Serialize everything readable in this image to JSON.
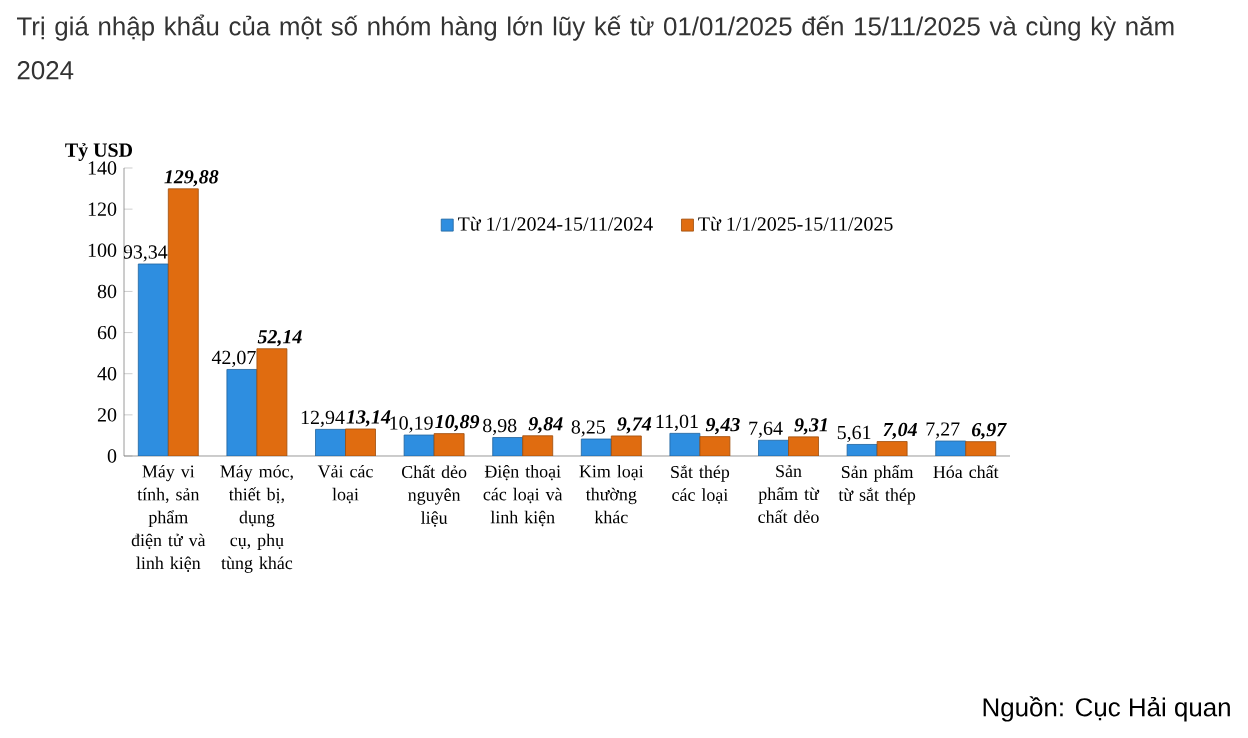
{
  "chart_data": {
    "type": "bar",
    "title": "Trị giá nhập khẩu của một số nhóm hàng lớn lũy kế từ 01/01/2025 đến 15/11/2025 và cùng kỳ năm 2024",
    "ylabel": "Tỷ USD",
    "categories": [
      "Máy vi tính, sản phẩm điện tử và linh kiện",
      "Máy móc, thiết bị, dụng cụ, phụ tùng khác",
      "Vải các loại",
      "Chất dẻo nguyên liệu",
      "Điện thoại các loại và linh kiện",
      "Kim loại thường khác",
      "Sắt thép các loại",
      "Sản phẩm từ chất dẻo",
      "Sản phẩm từ sắt thép",
      "Hóa chất"
    ],
    "series": [
      {
        "name": "Từ 1/1/2024-15/11/2024",
        "color": "#2e8ee0",
        "values": [
          93.34,
          42.07,
          12.94,
          10.19,
          8.98,
          8.25,
          11.01,
          7.64,
          5.61,
          7.27
        ],
        "value_labels": [
          "93,34",
          "42,07",
          "12,94",
          "10,19",
          "8,98",
          "8,25",
          "11,01",
          "7,64",
          "5,61",
          "7,27"
        ]
      },
      {
        "name": "Từ 1/1/2025-15/11/2025",
        "color": "#e06c10",
        "values": [
          129.88,
          52.14,
          13.14,
          10.89,
          9.84,
          9.74,
          9.43,
          9.31,
          7.04,
          6.97
        ],
        "value_labels": [
          "**129,88**",
          "**52,14**",
          "**13,14**",
          "**10,89**",
          "**9,84**",
          "**9,74**",
          "**9,43**",
          "**9,31**",
          "**7,04**",
          "**6,97**"
        ]
      }
    ],
    "ylim": [
      0,
      140
    ],
    "yticks": [
      0,
      20,
      40,
      60,
      80,
      100,
      120,
      140
    ],
    "legend": "top right",
    "annotations": [
      "Nguồn: Cục Hải quan"
    ]
  }
}
